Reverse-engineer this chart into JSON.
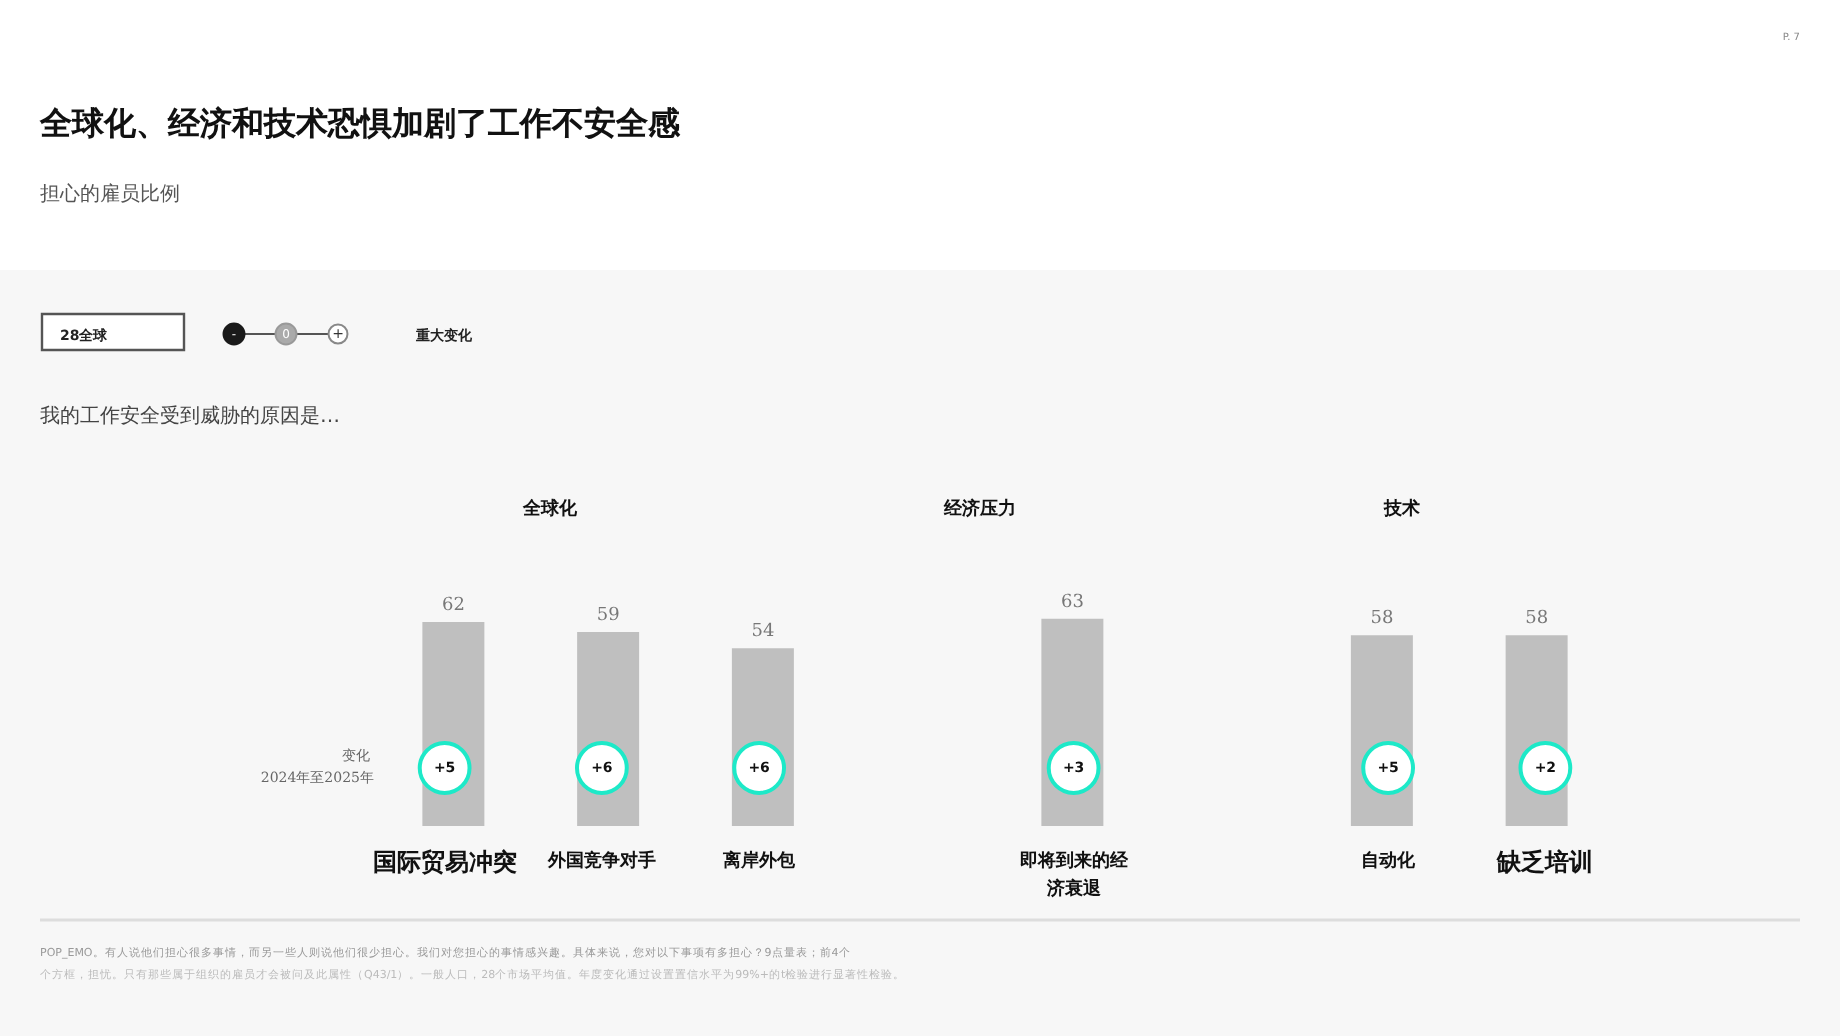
{
  "chart_data": {
    "type": "bar",
    "title": "全球化、经济和技术恐惧加剧了工作不安全感",
    "subtitle": "担心的雇员比例",
    "categories": [
      "国际贸易冲突",
      "外国竞争对手",
      "离岸外包",
      null,
      "即将到来的经济衰退",
      null,
      "自动化",
      "缺乏培训"
    ],
    "values": [
      62,
      59,
      54,
      null,
      63,
      null,
      58,
      58
    ],
    "color": "#bfbfbf",
    "data_labels": true,
    "annotations": [
      "28全球",
      "-",
      "0",
      "+",
      "重大变化",
      "我的工作安全受到威胁的原因是…",
      "变化",
      "2024年至2025年",
      "POP_EMO。有人说他们担心很多事情，而另一些人则说他们很少担心。我们对您担心的事情感兴趣。具体来说，您对以下事项有多担心？9点量表；前4个",
      "个方框，担忧。只有那些属于组织的雇员才会被问及此属性（Q43/1）。一般人口，28个市场平均值。年度变化通过设置置信水平为99%+的t检验进行显著性检验。",
      "P. 7",
      "全球化",
      "经济压力",
      "技术",
      {
        "text": "+5",
        "x": "国际贸易冲突"
      },
      {
        "text": "+6",
        "x": "外国竞争对手"
      },
      {
        "text": "+6",
        "x": "离岸外包"
      },
      {
        "text": "+3",
        "x": "即将到来的经济衰退"
      },
      {
        "text": "+5",
        "x": "自动化"
      },
      {
        "text": "+2",
        "x": "缺乏培训"
      }
    ]
  }
}
